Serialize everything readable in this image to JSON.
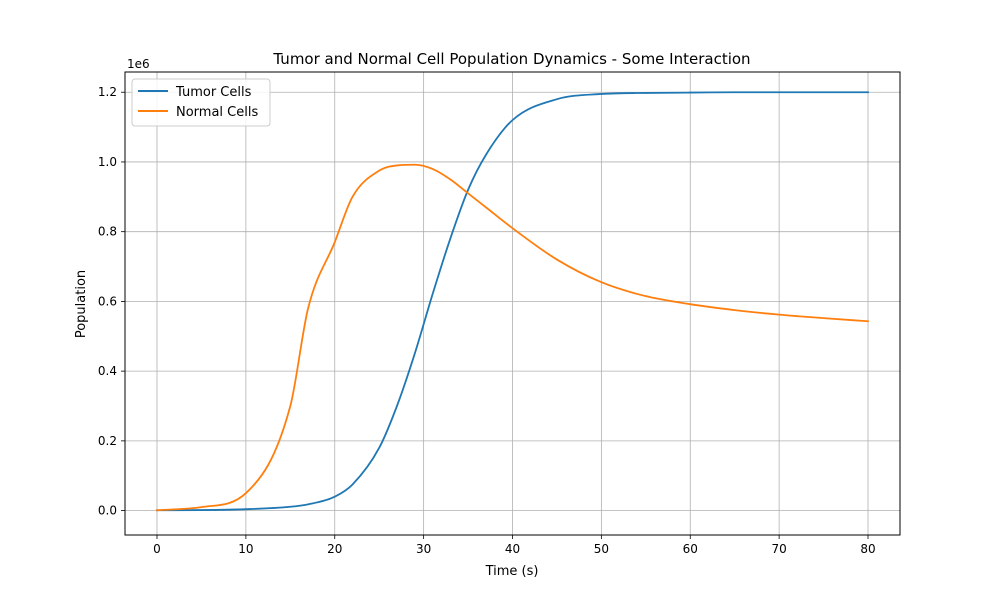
{
  "chart_data": {
    "type": "line",
    "title": "Tumor and Normal Cell Population Dynamics - Some Interaction",
    "xlabel": "Time (s)",
    "ylabel": "Population",
    "y_scale_label": "1e6",
    "xlim": [
      -3.6,
      83.6
    ],
    "ylim": [
      -70000,
      1258000
    ],
    "x_ticks": [
      0,
      10,
      20,
      30,
      40,
      50,
      60,
      70,
      80
    ],
    "x_tick_labels": [
      "0",
      "10",
      "20",
      "30",
      "40",
      "50",
      "60",
      "70",
      "80"
    ],
    "y_ticks": [
      0,
      200000,
      400000,
      600000,
      800000,
      1000000,
      1200000
    ],
    "y_tick_labels": [
      "0.0",
      "0.2",
      "0.4",
      "0.6",
      "0.8",
      "1.0",
      "1.2"
    ],
    "grid": true,
    "legend_position": "top-left",
    "x": [
      0,
      5,
      10,
      15,
      17,
      20,
      22,
      25,
      27,
      29,
      31,
      33,
      35,
      37,
      40,
      45,
      50,
      55,
      60,
      65,
      70,
      75,
      80
    ],
    "series": [
      {
        "name": "Tumor Cells",
        "color": "#1f77b4",
        "values": [
          1000,
          1500,
          4000,
          11000,
          18000,
          40000,
          75000,
          180000,
          300000,
          450000,
          620000,
          780000,
          920000,
          1020000,
          1120000,
          1180000,
          1195000,
          1198000,
          1199000,
          1200000,
          1200000,
          1200000,
          1200000
        ]
      },
      {
        "name": "Normal Cells",
        "color": "#ff7f0e",
        "values": [
          1000,
          10000,
          50000,
          300000,
          580000,
          770000,
          900000,
          975000,
          990000,
          992000,
          980000,
          950000,
          910000,
          870000,
          810000,
          720000,
          655000,
          615000,
          592000,
          575000,
          562000,
          552000,
          543000
        ]
      }
    ]
  }
}
